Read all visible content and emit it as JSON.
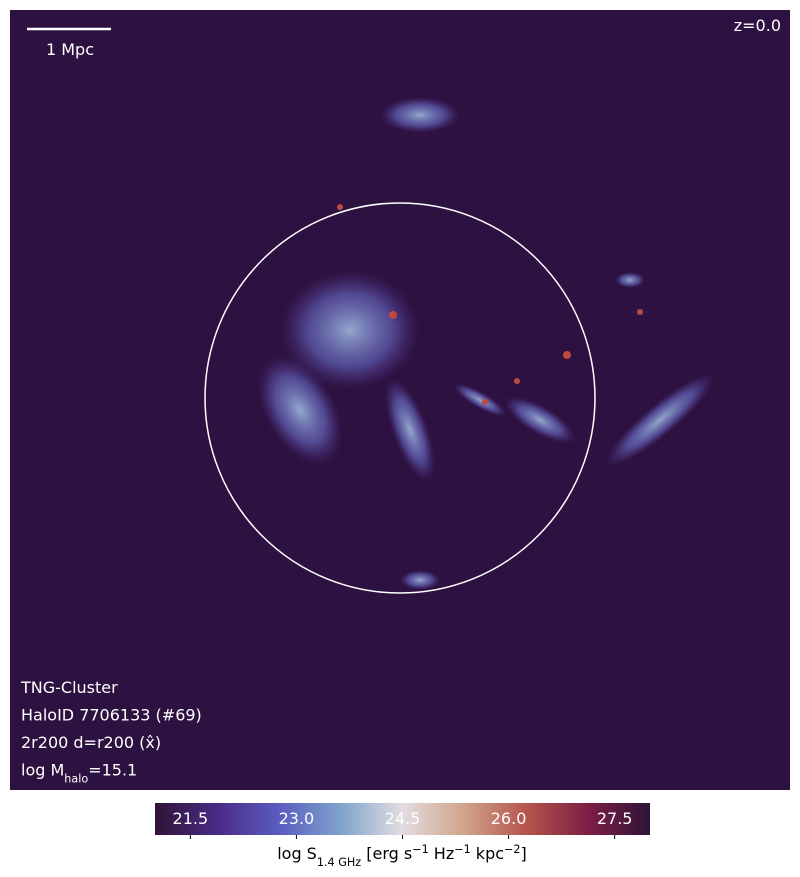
{
  "chart_data": {
    "type": "image",
    "scale_bar": "1 Mpc",
    "redshift": "z=0.0",
    "info": [
      [
        {
          "text": "TNG-Cluster"
        }
      ],
      [
        {
          "text": "HaloID 7706133 (#69)"
        }
      ],
      [
        {
          "text": "2r200 d=r200 ("
        },
        {
          "text": "x̂"
        },
        {
          "text": ")"
        }
      ],
      [
        {
          "text": "log M"
        },
        {
          "text": "halo",
          "shift": "sub"
        },
        {
          "text": "=15.1"
        }
      ]
    ],
    "colorbar": {
      "clim": [
        21.0,
        28.0
      ],
      "ticks": [
        21.5,
        {
          "value": 23,
          "label": "23.0"
        },
        24.5,
        {
          "value": 26,
          "label": "26.0"
        },
        27.5
      ],
      "colormap": [
        "#2f1436",
        "#4a2a86",
        "#5a5cc0",
        "#7fa3cc",
        "#e2dde0",
        "#d1a38a",
        "#b5554c",
        "#7d1e46",
        "#2f1436"
      ],
      "label": [
        {
          "text": "log S"
        },
        {
          "text": "1.4 GHz",
          "shift": "sub"
        },
        {
          "text": " [erg s"
        },
        {
          "text": "−1",
          "shift": "sup"
        },
        {
          "text": " Hz"
        },
        {
          "text": "−1",
          "shift": "sup"
        },
        {
          "text": " kpc"
        },
        {
          "text": "−2",
          "shift": "sup"
        },
        {
          "text": "]"
        }
      ]
    }
  }
}
